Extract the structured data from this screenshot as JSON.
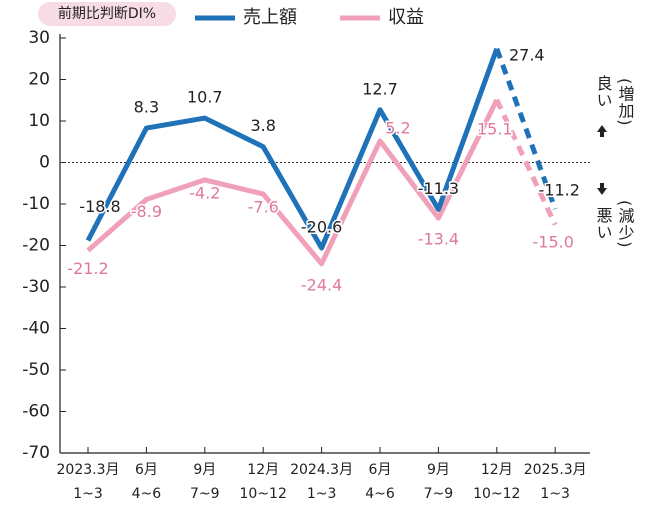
{
  "chart_data": {
    "type": "line",
    "unit_label": "前期比判断DI%",
    "categories": [
      [
        "2023.3月",
        "1~3"
      ],
      [
        "6月",
        "4~6"
      ],
      [
        "9月",
        "7~9"
      ],
      [
        "12月",
        "10~12"
      ],
      [
        "2024.3月",
        "1~3"
      ],
      [
        "6月",
        "4~6"
      ],
      [
        "9月",
        "7~9"
      ],
      [
        "12月",
        "10~12"
      ],
      [
        "2025.3月",
        "1~3"
      ]
    ],
    "series": [
      {
        "name": "売上額",
        "color": "#1f72b8",
        "values": [
          -18.8,
          8.3,
          10.7,
          3.8,
          -20.6,
          12.7,
          -11.3,
          27.4,
          -11.2
        ],
        "value_labels": [
          "-18.8",
          "8.3",
          "10.7",
          "3.8",
          "-20.6",
          "12.7",
          "-11.3",
          "27.4",
          "-11.2"
        ],
        "label_color": "#222"
      },
      {
        "name": "収益",
        "color": "#f0a0b8",
        "values": [
          -21.2,
          -8.9,
          -4.2,
          -7.6,
          -24.4,
          5.2,
          -13.4,
          15.1,
          -15.0
        ],
        "value_labels": [
          "-21.2",
          "-8.9",
          "-4.2",
          "-7.6",
          "-24.4",
          "5.2",
          "-13.4",
          "15.1",
          "-15.0"
        ],
        "label_color": "#e0789a"
      }
    ],
    "dashed_last_segment": true,
    "ylim": [
      -70,
      30
    ],
    "yticks": [
      -70,
      -60,
      -50,
      -40,
      -30,
      -20,
      -10,
      0,
      10,
      20,
      30
    ],
    "zero_line": true,
    "side_notes": {
      "up": [
        "良い",
        "(増加)"
      ],
      "down": [
        "悪い",
        "(減少)"
      ]
    }
  }
}
